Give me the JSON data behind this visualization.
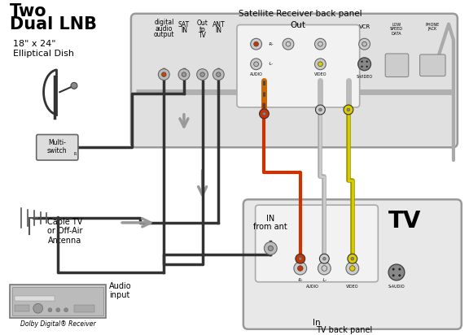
{
  "bg_color": "#ffffff",
  "title1": "Two",
  "title2": "Dual LNB",
  "sub1": "18\" x 24\"",
  "sub2": "Elliptical Dish",
  "panel_bg": "#e8e8e8",
  "panel_border": "#999999",
  "out_box_bg": "#f5f5f5",
  "tv_label": "TV",
  "sat_panel_label": "Satellite Receiver back panel",
  "tv_panel_label": "TV back panel",
  "out_label": "Out",
  "in_label": "In",
  "in_from_ant": "IN\nfrom ant",
  "cable_tv_text": "Cable TV",
  "off_air_text": "or Off-Air",
  "antenna_text": "Antenna",
  "audio_input_text": "Audio\ninput",
  "dolby_text": "Dolby Digital® Receiver",
  "text_color": "#000000",
  "gray": "#aaaaaa",
  "dark": "#333333",
  "red": "#cc3300",
  "yellow": "#ddcc00",
  "orange": "#cc6600",
  "white_plug": "#dddddd",
  "coax_bg": "#bbbbbb"
}
